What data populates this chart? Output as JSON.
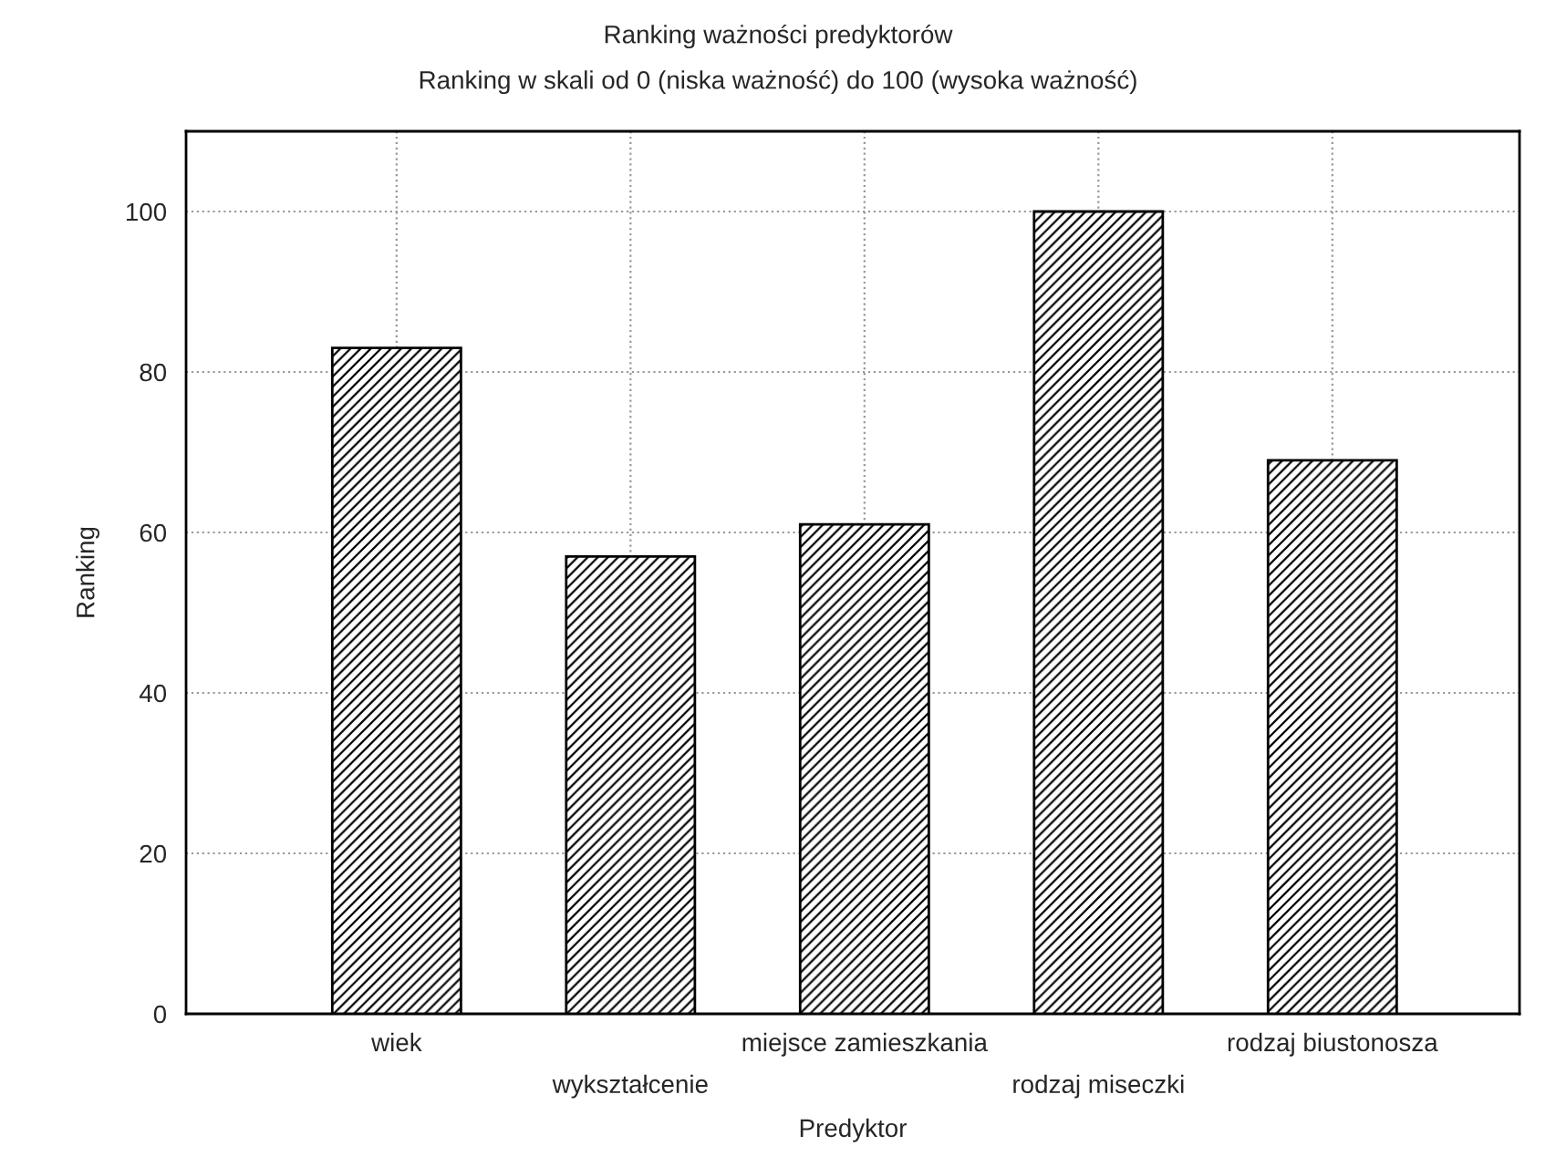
{
  "chart_data": {
    "type": "bar",
    "title": "Ranking ważności predyktorów",
    "subtitle": "Ranking w skali od 0 (niska ważność) do 100 (wysoka ważność)",
    "xlabel": "Predyktor",
    "ylabel": "Ranking",
    "categories": [
      "wiek",
      "wykształcenie",
      "miejsce zamieszkania",
      "rodzaj miseczki",
      "rodzaj biustonosza"
    ],
    "values": [
      83,
      57,
      61,
      100,
      69
    ],
    "color": "#000000",
    "ylim": [
      0,
      110
    ],
    "yticks": [
      0,
      20,
      40,
      60,
      80,
      100
    ],
    "grid": true
  }
}
